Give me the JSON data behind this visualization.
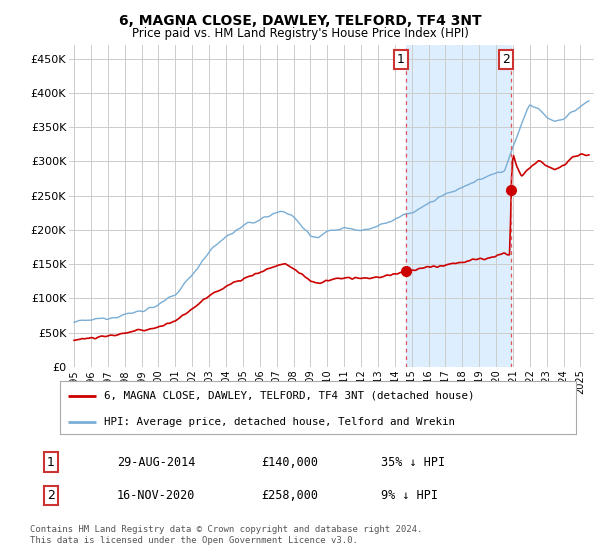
{
  "title": "6, MAGNA CLOSE, DAWLEY, TELFORD, TF4 3NT",
  "subtitle": "Price paid vs. HM Land Registry's House Price Index (HPI)",
  "ylabel_ticks": [
    "£0",
    "£50K",
    "£100K",
    "£150K",
    "£200K",
    "£250K",
    "£300K",
    "£350K",
    "£400K",
    "£450K"
  ],
  "ytick_values": [
    0,
    50000,
    100000,
    150000,
    200000,
    250000,
    300000,
    350000,
    400000,
    450000
  ],
  "ylim": [
    0,
    470000
  ],
  "xlim_start": 1994.7,
  "xlim_end": 2025.8,
  "grid_color": "#cccccc",
  "hpi_color": "#7aadd4",
  "hpi_fill_color": "#ddeeff",
  "price_color": "#cc0000",
  "sale1_year": 2014.66,
  "sale1_price": 140000,
  "sale1_label": "1",
  "sale2_year": 2020.88,
  "sale2_price": 258000,
  "sale2_label": "2",
  "vline_color": "#dd5555",
  "vline_style": ":",
  "legend_label_red": "6, MAGNA CLOSE, DAWLEY, TELFORD, TF4 3NT (detached house)",
  "legend_label_blue": "HPI: Average price, detached house, Telford and Wrekin",
  "table_row1": [
    "1",
    "29-AUG-2014",
    "£140,000",
    "35% ↓ HPI"
  ],
  "table_row2": [
    "2",
    "16-NOV-2020",
    "£258,000",
    "9% ↓ HPI"
  ],
  "footnote": "Contains HM Land Registry data © Crown copyright and database right 2024.\nThis data is licensed under the Open Government Licence v3.0.",
  "bg_color": "#ffffff"
}
